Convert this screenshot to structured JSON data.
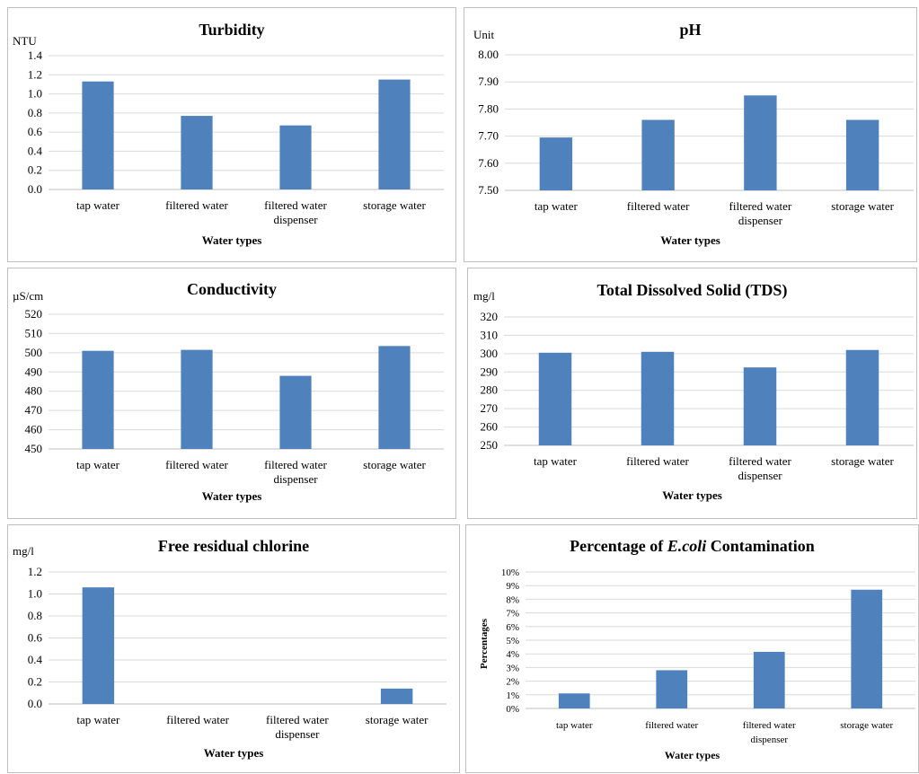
{
  "colors": {
    "bar": "#4f81bd",
    "grid": "#d9d9d9",
    "border": "#bfbfbf"
  },
  "chart_data": [
    {
      "type": "bar",
      "title": "Turbidity",
      "ylabel": "NTU",
      "xlabel": "Water types",
      "categories": [
        "tap water",
        "filtered water",
        "filtered water dispenser",
        "storage water"
      ],
      "values": [
        1.13,
        0.77,
        0.67,
        1.15
      ],
      "ylim": [
        0,
        1.4
      ],
      "yticks": [
        "0.0",
        "0.2",
        "0.4",
        "0.6",
        "0.8",
        "1.0",
        "1.2",
        "1.4"
      ],
      "grid": true
    },
    {
      "type": "bar",
      "title": "pH",
      "ylabel": "Unit",
      "xlabel": "Water types",
      "categories": [
        "tap water",
        "filtered water",
        "filtered water dispenser",
        "storage water"
      ],
      "values": [
        7.695,
        7.76,
        7.85,
        7.76
      ],
      "ylim": [
        7.5,
        8.0
      ],
      "yticks": [
        "7.50",
        "7.60",
        "7.70",
        "7.80",
        "7.90",
        "8.00"
      ],
      "grid": true
    },
    {
      "type": "bar",
      "title": "Conductivity",
      "ylabel": "µS/cm",
      "xlabel": "Water types",
      "categories": [
        "tap water",
        "filtered water",
        "filtered water dispenser",
        "storage water"
      ],
      "values": [
        501,
        501.5,
        488,
        503.5
      ],
      "ylim": [
        450,
        520
      ],
      "yticks": [
        "450",
        "460",
        "470",
        "480",
        "490",
        "500",
        "510",
        "520"
      ],
      "grid": true
    },
    {
      "type": "bar",
      "title": "Total Dissolved Solid (TDS)",
      "ylabel": "mg/l",
      "xlabel": "Water types",
      "categories": [
        "tap water",
        "filtered water",
        "filtered water dispenser",
        "storage water"
      ],
      "values": [
        300.5,
        301,
        292.5,
        302
      ],
      "ylim": [
        250,
        320
      ],
      "yticks": [
        "250",
        "260",
        "270",
        "280",
        "290",
        "300",
        "310",
        "320"
      ],
      "grid": true
    },
    {
      "type": "bar",
      "title": "Free residual chlorine",
      "ylabel": "mg/l",
      "xlabel": "Water types",
      "categories": [
        "tap water",
        "filtered water",
        "filtered water dispenser",
        "storage water"
      ],
      "values": [
        1.06,
        0,
        0,
        0.14
      ],
      "ylim": [
        0,
        1.2
      ],
      "yticks": [
        "0.0",
        "0.2",
        "0.4",
        "0.6",
        "0.8",
        "1.0",
        "1.2"
      ],
      "grid": true
    },
    {
      "type": "bar",
      "title_prefix": "Percentage of ",
      "title_italic": "E.coli",
      "title_suffix": " Contamination",
      "ylabel": "Percentages",
      "xlabel": "Water types",
      "categories": [
        "tap water",
        "filtered water",
        "filtered water dispenser",
        "storage water"
      ],
      "values": [
        1.1,
        2.8,
        4.15,
        8.7
      ],
      "ylim": [
        0,
        10
      ],
      "yticks": [
        "0%",
        "1%",
        "2%",
        "3%",
        "4%",
        "5%",
        "6%",
        "7%",
        "8%",
        "9%",
        "10%"
      ],
      "grid": true
    }
  ]
}
